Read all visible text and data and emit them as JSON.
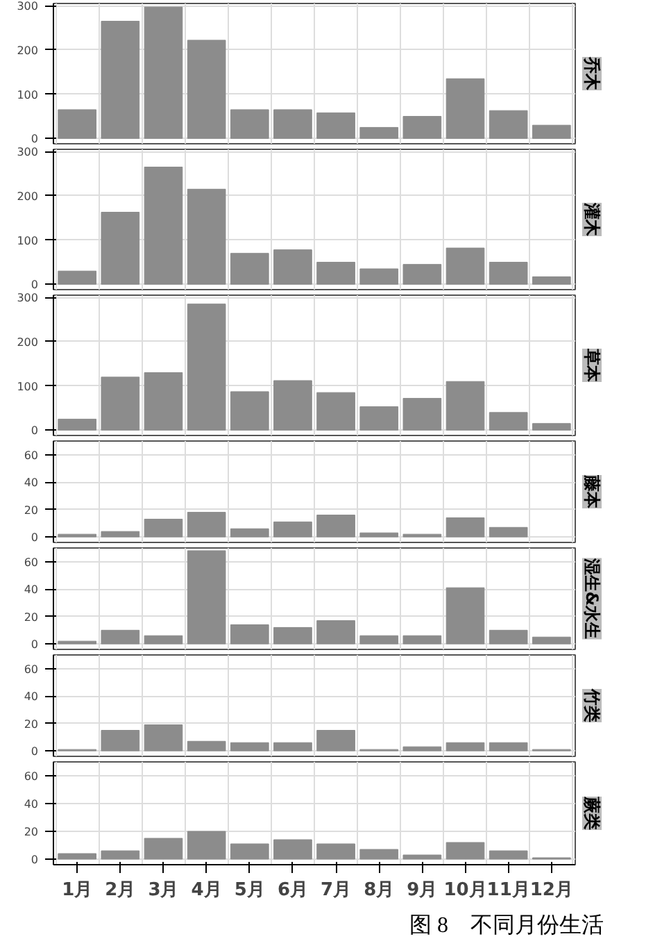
{
  "chart_data": [
    {
      "type": "bar",
      "title": "乔木",
      "categories": [
        null,
        null,
        null,
        null,
        null,
        null,
        null,
        null,
        null,
        null,
        null,
        null
      ],
      "values": [
        65,
        265,
        297,
        222,
        65,
        65,
        58,
        25,
        50,
        135,
        63,
        30
      ],
      "color": "#8c8c8c",
      "ylim": [
        -12,
        305
      ],
      "yticks": [
        0,
        100,
        200,
        300
      ],
      "grid": true,
      "tick_labels": "y"
    },
    {
      "type": "bar",
      "title": "灌木",
      "categories": [
        null,
        null,
        null,
        null,
        null,
        null,
        null,
        null,
        null,
        null,
        null,
        null
      ],
      "values": [
        30,
        163,
        265,
        215,
        70,
        78,
        50,
        35,
        45,
        82,
        50,
        17
      ],
      "color": "#8c8c8c",
      "ylim": [
        -12,
        305
      ],
      "yticks": [
        0,
        100,
        200,
        300
      ],
      "grid": true,
      "tick_labels": "y"
    },
    {
      "type": "bar",
      "title": "草本",
      "categories": [
        null,
        null,
        null,
        null,
        null,
        null,
        null,
        null,
        null,
        null,
        null,
        null
      ],
      "values": [
        25,
        120,
        130,
        285,
        87,
        112,
        85,
        53,
        72,
        110,
        40,
        15
      ],
      "color": "#8c8c8c",
      "ylim": [
        -12,
        305
      ],
      "yticks": [
        0,
        100,
        200,
        300
      ],
      "grid": true,
      "tick_labels": "y"
    },
    {
      "type": "bar",
      "title": "藤本",
      "categories": [
        null,
        null,
        null,
        null,
        null,
        null,
        null,
        null,
        null,
        null,
        null,
        null
      ],
      "values": [
        2,
        4,
        13,
        18,
        6,
        11,
        16,
        3,
        2,
        14,
        7,
        null
      ],
      "color": "#8c8c8c",
      "ylim": [
        -4,
        70
      ],
      "yticks": [
        0,
        20,
        40,
        60
      ],
      "grid": true,
      "tick_labels": "y"
    },
    {
      "type": "bar",
      "title": "湿生&水生",
      "categories": [
        null,
        null,
        null,
        null,
        null,
        null,
        null,
        null,
        null,
        null,
        null,
        null
      ],
      "values": [
        2,
        10,
        6,
        68,
        14,
        12,
        17,
        6,
        6,
        41,
        10,
        5
      ],
      "color": "#8c8c8c",
      "ylim": [
        -4,
        70
      ],
      "yticks": [
        0,
        20,
        40,
        60
      ],
      "grid": true,
      "tick_labels": "y"
    },
    {
      "type": "bar",
      "title": "竹类",
      "categories": [
        null,
        null,
        null,
        null,
        null,
        null,
        null,
        null,
        null,
        null,
        null,
        null
      ],
      "values": [
        1,
        15,
        19,
        7,
        6,
        6,
        15,
        1,
        3,
        6,
        6,
        1
      ],
      "color": "#8c8c8c",
      "ylim": [
        -4,
        70
      ],
      "yticks": [
        0,
        20,
        40,
        60
      ],
      "grid": true,
      "tick_labels": "y"
    },
    {
      "type": "bar",
      "title": "蕨类",
      "categories": [
        "1月",
        "2月",
        "3月",
        "4月",
        "5月",
        "6月",
        "7月",
        "8月",
        "9月",
        "10月",
        "11月",
        "12月"
      ],
      "values": [
        4,
        6,
        15,
        20,
        11,
        14,
        11,
        7,
        3,
        12,
        6,
        1
      ],
      "color": "#8c8c8c",
      "ylim": [
        -4,
        70
      ],
      "yticks": [
        0,
        20,
        40,
        60
      ],
      "grid": true,
      "annotations": [
        "图 8　不同月份生活"
      ]
    }
  ]
}
